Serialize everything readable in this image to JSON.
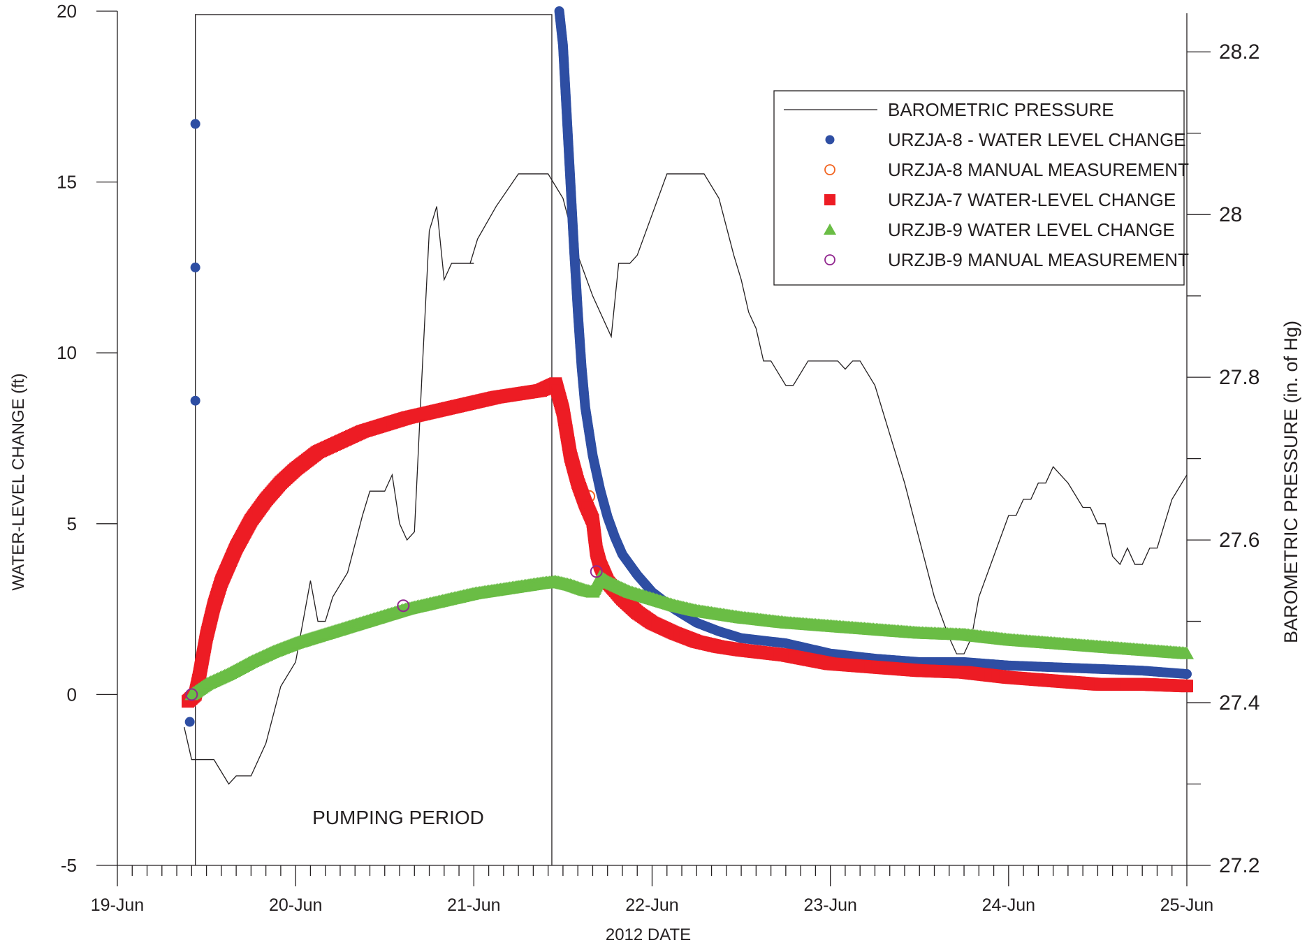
{
  "chart_data": {
    "type": "line",
    "xlabel": "2012 DATE",
    "ylabel": "WATER-LEVEL CHANGE (ft)",
    "y2label": "BAROMETRIC PRESSURE (in. of Hg)",
    "annotation": "PUMPING PERIOD",
    "xlim": [
      "2012-06-19",
      "2012-06-25"
    ],
    "x_tick_labels": [
      "19-Jun",
      "20-Jun",
      "21-Jun",
      "22-Jun",
      "23-Jun",
      "24-Jun",
      "25-Jun"
    ],
    "ylim": [
      -5,
      20
    ],
    "y_ticks": [
      -5,
      0,
      5,
      10,
      15,
      20
    ],
    "y2lim": [
      27.2,
      28.25
    ],
    "y2_ticks": [
      27.2,
      27.4,
      27.6,
      27.8,
      28,
      28.2
    ],
    "pumping_period": {
      "start": "2012-06-19 10:30",
      "end": "2012-06-21 10:30"
    },
    "legend_position": "top-right",
    "grid": false,
    "series": [
      {
        "name": "BAROMETRIC PRESSURE",
        "marker": "line",
        "color": "#231f20",
        "axis": "right",
        "points": [
          [
            "2012-06-19 09:00",
            27.37
          ],
          [
            "2012-06-19 10:00",
            27.33
          ],
          [
            "2012-06-19 13:00",
            27.33
          ],
          [
            "2012-06-19 15:00",
            27.3
          ],
          [
            "2012-06-19 16:00",
            27.31
          ],
          [
            "2012-06-19 18:00",
            27.31
          ],
          [
            "2012-06-19 20:00",
            27.35
          ],
          [
            "2012-06-19 22:00",
            27.42
          ],
          [
            "2012-06-20 00:00",
            27.45
          ],
          [
            "2012-06-20 02:00",
            27.55
          ],
          [
            "2012-06-20 03:00",
            27.5
          ],
          [
            "2012-06-20 04:00",
            27.5
          ],
          [
            "2012-06-20 05:00",
            27.53
          ],
          [
            "2012-06-20 07:00",
            27.56
          ],
          [
            "2012-06-20 09:00",
            27.63
          ],
          [
            "2012-06-20 10:00",
            27.66
          ],
          [
            "2012-06-20 12:00",
            27.66
          ],
          [
            "2012-06-20 13:00",
            27.68
          ],
          [
            "2012-06-20 14:00",
            27.62
          ],
          [
            "2012-06-20 15:00",
            27.6
          ],
          [
            "2012-06-20 16:00",
            27.61
          ],
          [
            "2012-06-20 17:00",
            27.8
          ],
          [
            "2012-06-20 18:00",
            27.98
          ],
          [
            "2012-06-20 19:00",
            28.01
          ],
          [
            "2012-06-20 20:00",
            27.92
          ],
          [
            "2012-06-20 21:00",
            27.94
          ],
          [
            "2012-06-21 00:00",
            27.94
          ],
          [
            "2012-06-20 23:30",
            27.94
          ],
          [
            "2012-06-21 00:30",
            27.97
          ],
          [
            "2012-06-21 03:00",
            28.01
          ],
          [
            "2012-06-21 06:00",
            28.05
          ],
          [
            "2012-06-21 08:00",
            28.05
          ],
          [
            "2012-06-21 10:00",
            28.05
          ],
          [
            "2012-06-21 12:00",
            28.02
          ],
          [
            "2012-06-21 14:00",
            27.95
          ],
          [
            "2012-06-21 16:00",
            27.9
          ],
          [
            "2012-06-21 17:00",
            27.88
          ],
          [
            "2012-06-21 18:30",
            27.85
          ],
          [
            "2012-06-21 19:30",
            27.94
          ],
          [
            "2012-06-21 21:00",
            27.94
          ],
          [
            "2012-06-21 22:00",
            27.95
          ],
          [
            "2012-06-22 00:00",
            28.0
          ],
          [
            "2012-06-22 02:00",
            28.05
          ],
          [
            "2012-06-22 07:00",
            28.05
          ],
          [
            "2012-06-22 09:00",
            28.02
          ],
          [
            "2012-06-22 11:00",
            27.95
          ],
          [
            "2012-06-22 12:00",
            27.92
          ],
          [
            "2012-06-22 13:00",
            27.88
          ],
          [
            "2012-06-22 14:00",
            27.86
          ],
          [
            "2012-06-22 15:00",
            27.82
          ],
          [
            "2012-06-22 16:00",
            27.82
          ],
          [
            "2012-06-22 18:00",
            27.79
          ],
          [
            "2012-06-22 19:00",
            27.79
          ],
          [
            "2012-06-22 21:00",
            27.82
          ],
          [
            "2012-06-23 00:00",
            27.82
          ],
          [
            "2012-06-23 01:00",
            27.82
          ],
          [
            "2012-06-23 02:00",
            27.81
          ],
          [
            "2012-06-23 03:00",
            27.82
          ],
          [
            "2012-06-23 04:00",
            27.82
          ],
          [
            "2012-06-23 06:00",
            27.79
          ],
          [
            "2012-06-23 08:00",
            27.73
          ],
          [
            "2012-06-23 10:00",
            27.67
          ],
          [
            "2012-06-23 12:00",
            27.6
          ],
          [
            "2012-06-23 14:00",
            27.53
          ],
          [
            "2012-06-23 16:00",
            27.48
          ],
          [
            "2012-06-23 17:00",
            27.46
          ],
          [
            "2012-06-23 18:00",
            27.46
          ],
          [
            "2012-06-23 19:00",
            27.48
          ],
          [
            "2012-06-23 20:00",
            27.53
          ],
          [
            "2012-06-23 22:00",
            27.58
          ],
          [
            "2012-06-24 00:00",
            27.63
          ],
          [
            "2012-06-24 01:00",
            27.63
          ],
          [
            "2012-06-24 02:00",
            27.65
          ],
          [
            "2012-06-24 03:00",
            27.65
          ],
          [
            "2012-06-24 04:00",
            27.67
          ],
          [
            "2012-06-24 05:00",
            27.67
          ],
          [
            "2012-06-24 06:00",
            27.69
          ],
          [
            "2012-06-24 08:00",
            27.67
          ],
          [
            "2012-06-24 10:00",
            27.64
          ],
          [
            "2012-06-24 11:00",
            27.64
          ],
          [
            "2012-06-24 12:00",
            27.62
          ],
          [
            "2012-06-24 13:00",
            27.62
          ],
          [
            "2012-06-24 14:00",
            27.58
          ],
          [
            "2012-06-24 15:00",
            27.57
          ],
          [
            "2012-06-24 16:00",
            27.59
          ],
          [
            "2012-06-24 17:00",
            27.57
          ],
          [
            "2012-06-24 18:00",
            27.57
          ],
          [
            "2012-06-24 19:00",
            27.59
          ],
          [
            "2012-06-24 20:00",
            27.59
          ],
          [
            "2012-06-24 22:00",
            27.65
          ],
          [
            "2012-06-25 00:00",
            27.68
          ]
        ]
      },
      {
        "name": "URZJA-8 - WATER LEVEL CHANGE",
        "marker": "filled-circle",
        "color": "#2e4ea3",
        "axis": "left",
        "points": [
          [
            "2012-06-19 09:45",
            -0.8
          ],
          [
            "2012-06-19 10:30",
            8.6
          ],
          [
            "2012-06-19 10:30",
            12.5
          ],
          [
            "2012-06-19 10:30",
            16.7
          ],
          [
            "2012-06-21 11:30",
            20.0
          ],
          [
            "2012-06-21 12:00",
            19.0
          ],
          [
            "2012-06-21 12:30",
            17.0
          ],
          [
            "2012-06-21 13:00",
            15.0
          ],
          [
            "2012-06-21 13:30",
            13.0
          ],
          [
            "2012-06-21 14:00",
            11.2
          ],
          [
            "2012-06-21 14:30",
            9.6
          ],
          [
            "2012-06-21 15:00",
            8.4
          ],
          [
            "2012-06-21 16:00",
            7.0
          ],
          [
            "2012-06-21 17:00",
            6.0
          ],
          [
            "2012-06-21 18:00",
            5.2
          ],
          [
            "2012-06-21 19:00",
            4.6
          ],
          [
            "2012-06-21 20:00",
            4.1
          ],
          [
            "2012-06-21 22:00",
            3.5
          ],
          [
            "2012-06-22 00:00",
            3.0
          ],
          [
            "2012-06-22 03:00",
            2.5
          ],
          [
            "2012-06-22 06:00",
            2.1
          ],
          [
            "2012-06-22 09:00",
            1.85
          ],
          [
            "2012-06-22 12:00",
            1.65
          ],
          [
            "2012-06-22 18:00",
            1.5
          ],
          [
            "2012-06-23 00:00",
            1.2
          ],
          [
            "2012-06-23 06:00",
            1.05
          ],
          [
            "2012-06-23 12:00",
            0.95
          ],
          [
            "2012-06-23 18:00",
            0.95
          ],
          [
            "2012-06-24 00:00",
            0.85
          ],
          [
            "2012-06-24 06:00",
            0.8
          ],
          [
            "2012-06-24 12:00",
            0.75
          ],
          [
            "2012-06-24 18:00",
            0.7
          ],
          [
            "2012-06-25 00:00",
            0.6
          ]
        ]
      },
      {
        "name": "URZJA-8 MANUAL MEASUREMENT",
        "marker": "open-circle",
        "color": "#f26522",
        "axis": "left",
        "points": [
          [
            "2012-06-21 15:30",
            5.8
          ]
        ]
      },
      {
        "name": "URZJA-7 WATER-LEVEL CHANGE",
        "marker": "filled-square",
        "color": "#ed1c24",
        "axis": "left",
        "points": [
          [
            "2012-06-19 09:30",
            -0.2
          ],
          [
            "2012-06-19 10:30",
            0.0
          ],
          [
            "2012-06-19 11:00",
            0.5
          ],
          [
            "2012-06-19 12:00",
            1.7
          ],
          [
            "2012-06-19 13:00",
            2.6
          ],
          [
            "2012-06-19 14:00",
            3.3
          ],
          [
            "2012-06-19 15:00",
            3.8
          ],
          [
            "2012-06-19 16:00",
            4.3
          ],
          [
            "2012-06-19 17:00",
            4.7
          ],
          [
            "2012-06-19 18:00",
            5.1
          ],
          [
            "2012-06-19 20:00",
            5.7
          ],
          [
            "2012-06-19 22:00",
            6.2
          ],
          [
            "2012-06-20 00:00",
            6.6
          ],
          [
            "2012-06-20 03:00",
            7.1
          ],
          [
            "2012-06-20 06:00",
            7.4
          ],
          [
            "2012-06-20 09:00",
            7.7
          ],
          [
            "2012-06-20 12:00",
            7.9
          ],
          [
            "2012-06-20 15:00",
            8.1
          ],
          [
            "2012-06-20 18:00",
            8.25
          ],
          [
            "2012-06-20 21:00",
            8.4
          ],
          [
            "2012-06-21 00:00",
            8.55
          ],
          [
            "2012-06-21 03:00",
            8.7
          ],
          [
            "2012-06-21 06:00",
            8.8
          ],
          [
            "2012-06-21 09:00",
            8.9
          ],
          [
            "2012-06-21 11:00",
            9.1
          ],
          [
            "2012-06-21 12:00",
            8.3
          ],
          [
            "2012-06-21 13:00",
            7.0
          ],
          [
            "2012-06-21 14:00",
            6.2
          ],
          [
            "2012-06-21 15:00",
            5.6
          ],
          [
            "2012-06-21 16:00",
            5.1
          ],
          [
            "2012-06-21 16:30",
            4.2
          ],
          [
            "2012-06-21 17:00",
            3.8
          ],
          [
            "2012-06-21 18:00",
            3.3
          ],
          [
            "2012-06-21 20:00",
            2.8
          ],
          [
            "2012-06-21 22:00",
            2.4
          ],
          [
            "2012-06-22 00:00",
            2.1
          ],
          [
            "2012-06-22 03:00",
            1.8
          ],
          [
            "2012-06-22 06:00",
            1.55
          ],
          [
            "2012-06-22 09:00",
            1.4
          ],
          [
            "2012-06-22 12:00",
            1.3
          ],
          [
            "2012-06-22 18:00",
            1.15
          ],
          [
            "2012-06-23 00:00",
            0.9
          ],
          [
            "2012-06-23 06:00",
            0.8
          ],
          [
            "2012-06-23 12:00",
            0.7
          ],
          [
            "2012-06-23 18:00",
            0.65
          ],
          [
            "2012-06-24 00:00",
            0.5
          ],
          [
            "2012-06-24 06:00",
            0.4
          ],
          [
            "2012-06-24 12:00",
            0.3
          ],
          [
            "2012-06-24 18:00",
            0.3
          ],
          [
            "2012-06-25 00:00",
            0.25
          ]
        ]
      },
      {
        "name": "URZJB-9 WATER LEVEL CHANGE",
        "marker": "filled-triangle",
        "color": "#6abd45",
        "axis": "left",
        "points": [
          [
            "2012-06-19 10:00",
            0.0
          ],
          [
            "2012-06-19 12:00",
            0.3
          ],
          [
            "2012-06-19 15:00",
            0.6
          ],
          [
            "2012-06-19 18:00",
            0.95
          ],
          [
            "2012-06-19 21:00",
            1.25
          ],
          [
            "2012-06-20 00:00",
            1.5
          ],
          [
            "2012-06-20 03:00",
            1.7
          ],
          [
            "2012-06-20 06:00",
            1.9
          ],
          [
            "2012-06-20 09:00",
            2.1
          ],
          [
            "2012-06-20 12:00",
            2.3
          ],
          [
            "2012-06-20 15:00",
            2.5
          ],
          [
            "2012-06-20 18:00",
            2.65
          ],
          [
            "2012-06-20 21:00",
            2.8
          ],
          [
            "2012-06-21 00:00",
            2.95
          ],
          [
            "2012-06-21 03:00",
            3.05
          ],
          [
            "2012-06-21 06:00",
            3.15
          ],
          [
            "2012-06-21 09:00",
            3.25
          ],
          [
            "2012-06-21 11:00",
            3.3
          ],
          [
            "2012-06-21 13:00",
            3.2
          ],
          [
            "2012-06-21 15:00",
            3.05
          ],
          [
            "2012-06-21 16:00",
            3.0
          ],
          [
            "2012-06-21 17:00",
            3.45
          ],
          [
            "2012-06-21 18:00",
            3.3
          ],
          [
            "2012-06-21 21:00",
            3.0
          ],
          [
            "2012-06-22 00:00",
            2.8
          ],
          [
            "2012-06-22 03:00",
            2.6
          ],
          [
            "2012-06-22 06:00",
            2.45
          ],
          [
            "2012-06-22 09:00",
            2.35
          ],
          [
            "2012-06-22 12:00",
            2.25
          ],
          [
            "2012-06-22 18:00",
            2.1
          ],
          [
            "2012-06-23 00:00",
            2.0
          ],
          [
            "2012-06-23 06:00",
            1.9
          ],
          [
            "2012-06-23 12:00",
            1.8
          ],
          [
            "2012-06-23 18:00",
            1.75
          ],
          [
            "2012-06-24 00:00",
            1.6
          ],
          [
            "2012-06-24 06:00",
            1.5
          ],
          [
            "2012-06-24 12:00",
            1.4
          ],
          [
            "2012-06-24 18:00",
            1.3
          ],
          [
            "2012-06-25 00:00",
            1.2
          ]
        ]
      },
      {
        "name": "URZJB-9 MANUAL MEASUREMENT",
        "marker": "open-circle",
        "color": "#92278f",
        "axis": "left",
        "points": [
          [
            "2012-06-19 10:00",
            0.0
          ],
          [
            "2012-06-20 14:30",
            2.6
          ],
          [
            "2012-06-21 16:30",
            3.6
          ]
        ]
      }
    ]
  }
}
